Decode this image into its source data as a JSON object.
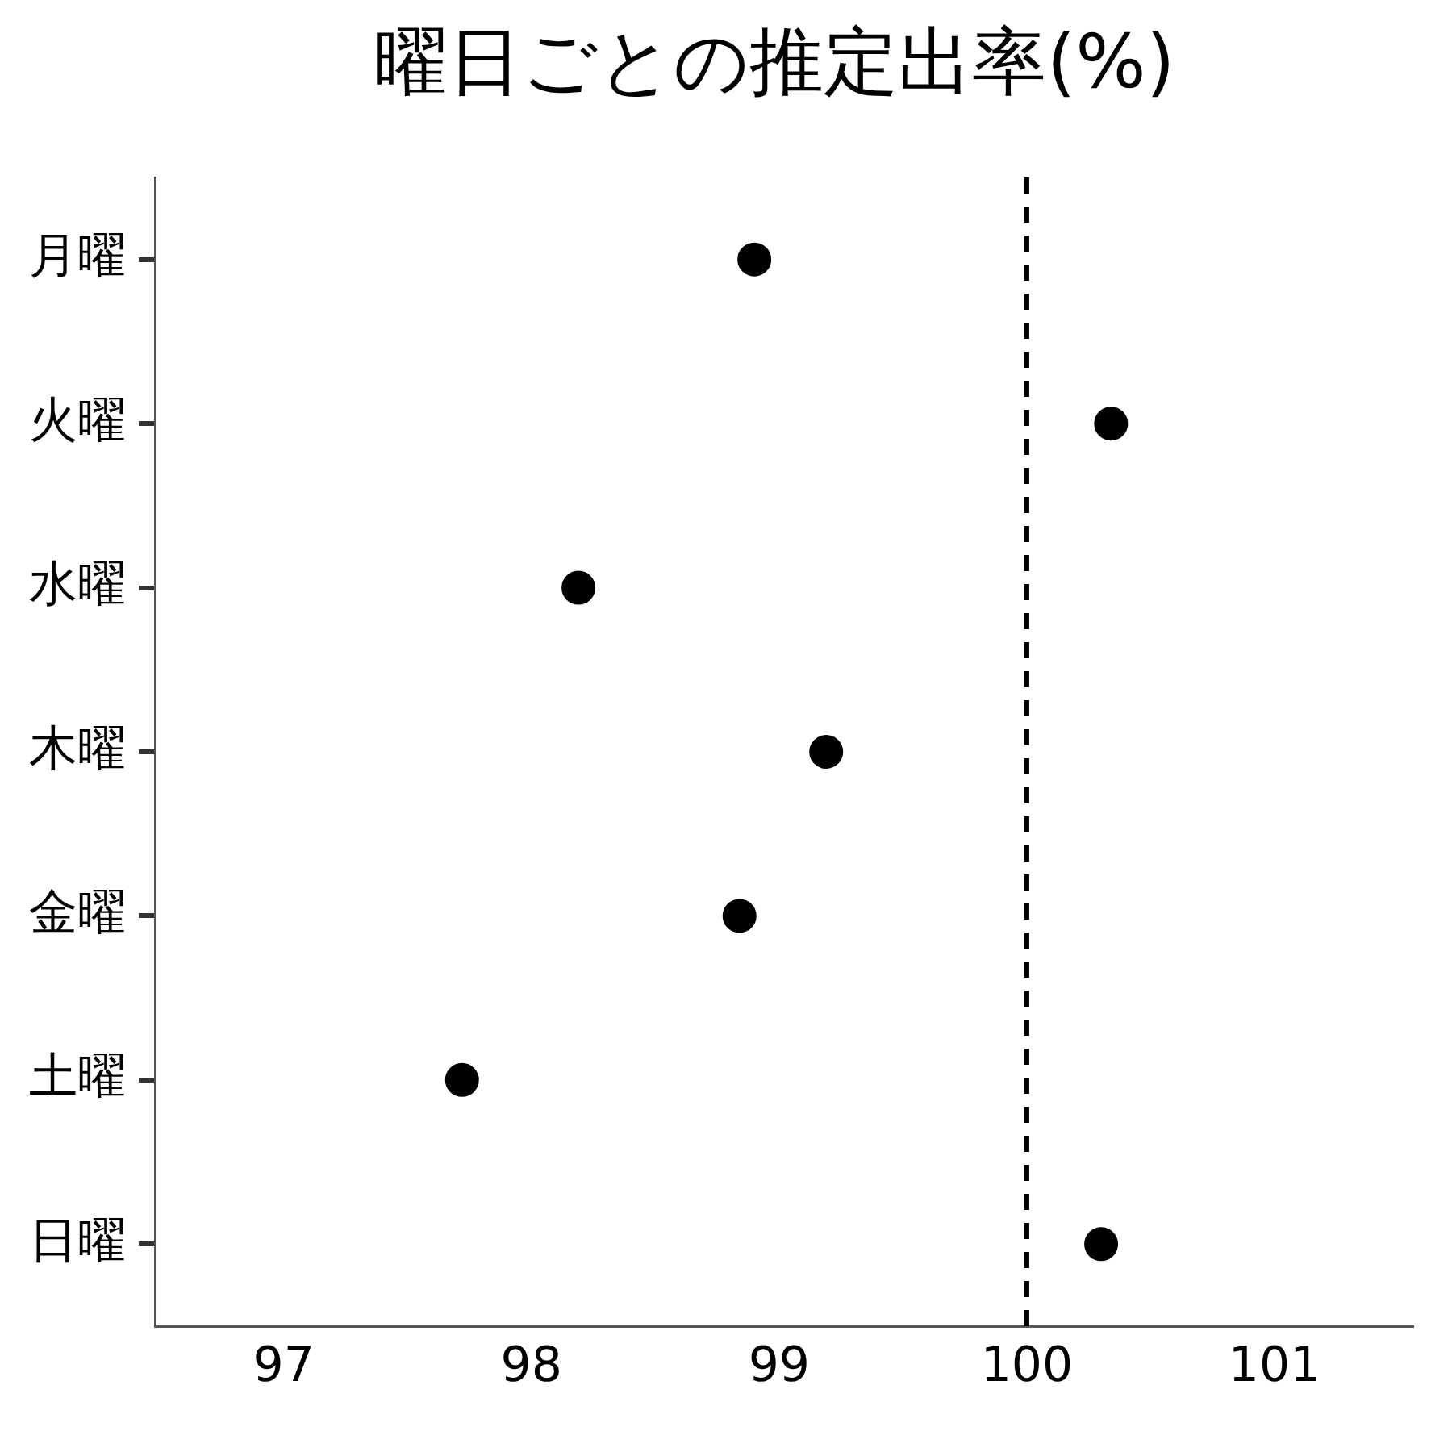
{
  "chart_data": {
    "type": "scatter",
    "orientation": "horizontal",
    "title": "曜日ごとの推定出率(%)",
    "categories": [
      "月曜",
      "火曜",
      "水曜",
      "木曜",
      "金曜",
      "土曜",
      "日曜"
    ],
    "values": [
      98.9,
      100.34,
      98.19,
      99.19,
      98.84,
      97.72,
      100.3
    ],
    "color": "#000000",
    "marker": "circle",
    "grid": false,
    "legend": false,
    "xlim": [
      96.48,
      101.56
    ],
    "xticks": [
      97,
      98,
      99,
      100,
      101
    ],
    "ref_lines": [
      {
        "axis": "x",
        "value": 100,
        "color": "#000000",
        "line_style": "dashed"
      }
    ]
  }
}
